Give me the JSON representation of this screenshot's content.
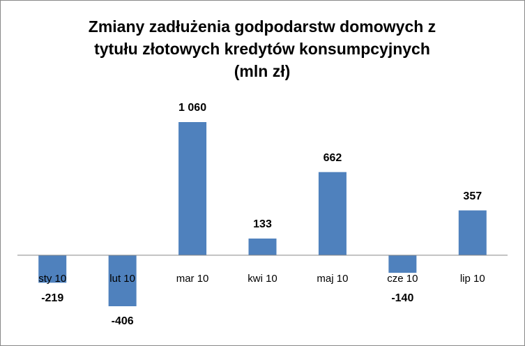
{
  "chart_data": {
    "type": "bar",
    "title": [
      "Zmiany zadłużenia godpodarstw domowych z",
      "tytułu złotowych kredytów konsumpcyjnych",
      "(mln zł)"
    ],
    "categories": [
      "sty 10",
      "lut 10",
      "mar 10",
      "kwi 10",
      "maj 10",
      "cze 10",
      "lip 10"
    ],
    "values": [
      -219,
      -406,
      1060,
      133,
      662,
      -140,
      357
    ],
    "value_labels": [
      "-219",
      "-406",
      "1 060",
      "133",
      "662",
      "-140",
      "357"
    ],
    "color": "#4f81bd"
  }
}
